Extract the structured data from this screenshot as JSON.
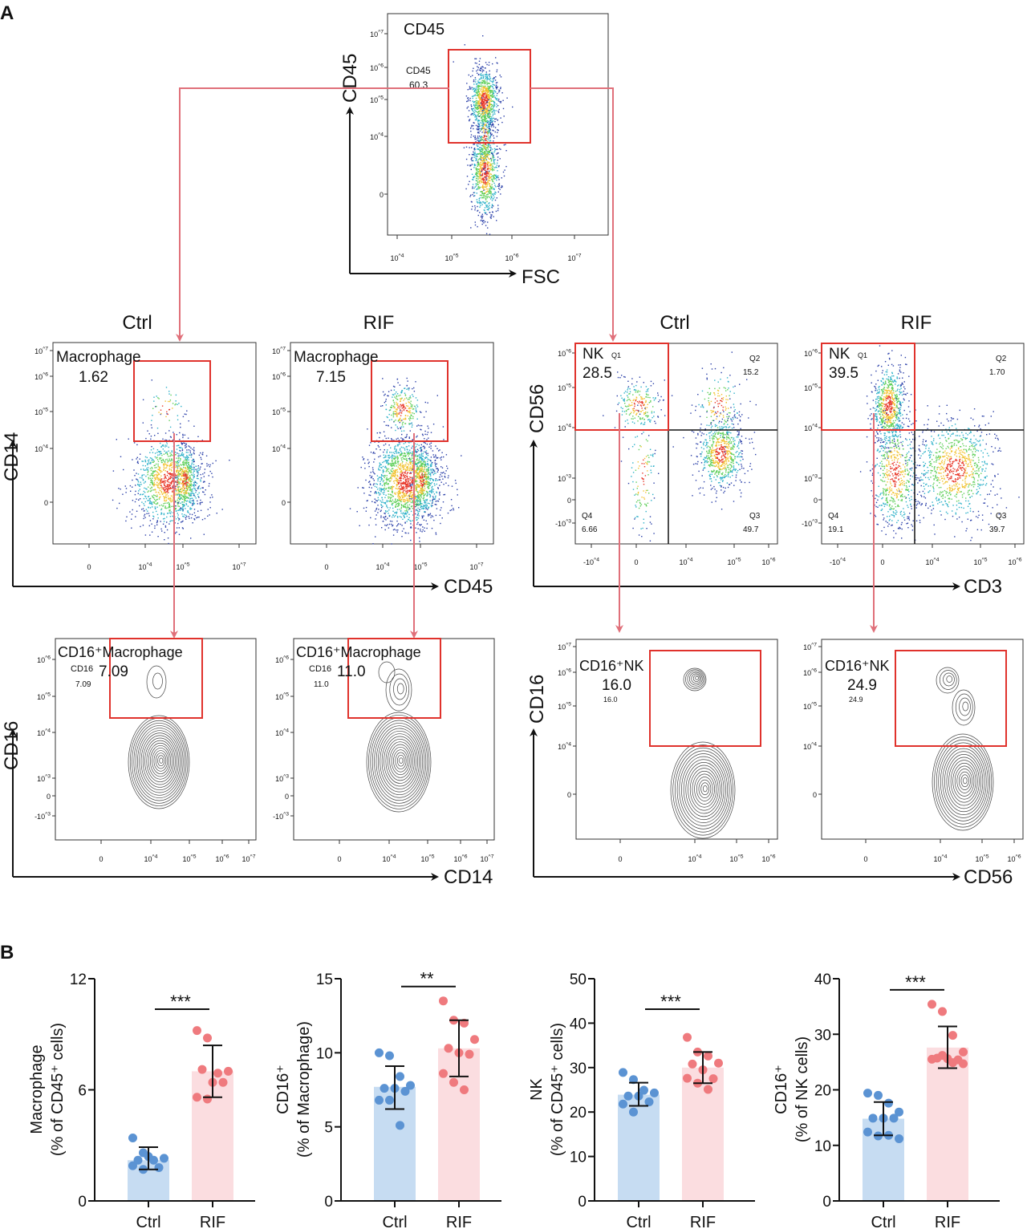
{
  "panel_labels": {
    "a": "A",
    "b": "B"
  },
  "panel_a": {
    "top_plot": {
      "title": "CD45",
      "gate_label": "CD45",
      "gate_value": "60.3",
      "x_axis": "FSC",
      "y_axis": "CD45",
      "x_ticks": [
        "10^4",
        "10^5",
        "10^6",
        "10^7"
      ],
      "y_ticks": [
        "10^7",
        "10^6",
        "10^5",
        "10^4",
        "0"
      ]
    },
    "group_headers": [
      "Ctrl",
      "RIF",
      "Ctrl",
      "RIF"
    ],
    "macrophage_row": {
      "x_axis": "CD45",
      "y_axis": "CD14",
      "x_ticks": [
        "0",
        "10^4",
        "10^5",
        "10^7"
      ],
      "y_ticks": [
        "10^7",
        "10^6",
        "10^5",
        "10^4",
        "0"
      ],
      "gate_label": "Macrophage",
      "plots": [
        {
          "group": "Ctrl",
          "value": "1.62"
        },
        {
          "group": "RIF",
          "value": "7.15"
        }
      ]
    },
    "nk_row": {
      "x_axis": "CD3",
      "y_axis": "CD56",
      "x_ticks": [
        "-10^4",
        "0",
        "10^4",
        "10^5",
        "10^6"
      ],
      "y_ticks": [
        "10^6",
        "10^5",
        "10^4",
        "10^3",
        "0",
        "-10^3"
      ],
      "gate_label": "NK",
      "plots": [
        {
          "group": "Ctrl",
          "value": "28.5",
          "quadrants": {
            "Q1": "Q1",
            "Q2": "Q2",
            "Q3": "Q3",
            "Q4": "Q4",
            "Q2_value": "15.2",
            "Q3_value": "49.7",
            "Q4_value": "6.66"
          }
        },
        {
          "group": "RIF",
          "value": "39.5",
          "quadrants": {
            "Q1": "Q1",
            "Q2": "Q2",
            "Q3": "Q3",
            "Q4": "Q4",
            "Q2_value": "1.70",
            "Q3_value": "39.7",
            "Q4_value": "19.1"
          }
        }
      ]
    },
    "cd16_macrophage_row": {
      "x_axis": "CD14",
      "y_axis": "CD16",
      "x_ticks": [
        "0",
        "10^4",
        "10^5",
        "10^6",
        "10^7"
      ],
      "y_ticks": [
        "10^6",
        "10^5",
        "10^4",
        "10^3",
        "0",
        "-10^3"
      ],
      "gate_label": "CD16⁺Macrophage",
      "gate_small": "CD16",
      "plots": [
        {
          "group": "Ctrl",
          "value": "7.09"
        },
        {
          "group": "RIF",
          "value": "11.0"
        }
      ]
    },
    "cd16_nk_row": {
      "x_axis": "CD56",
      "y_axis": "CD16",
      "x_ticks": [
        "0",
        "10^4",
        "10^5",
        "10^6"
      ],
      "y_ticks": [
        "10^7",
        "10^6",
        "10^5",
        "10^4",
        "0"
      ],
      "gate_label": "CD16⁺NK",
      "plots": [
        {
          "group": "Ctrl",
          "value": "16.0"
        },
        {
          "group": "RIF",
          "value": "24.9"
        }
      ]
    }
  },
  "colors": {
    "ctrl_bar": "#c6dcf2",
    "ctrl_dot": "#5b93d3",
    "rif_bar": "#fbdde0",
    "rif_dot": "#ef7a7e",
    "gate": "#e0322c",
    "arrow": "#e0707a"
  },
  "chart_data": [
    {
      "type": "bar",
      "categories": [
        "Ctrl",
        "RIF"
      ],
      "ylabel": [
        "Macrophage",
        "(% of CD45⁺ cells)"
      ],
      "ylim": [
        0,
        12
      ],
      "yticks": [
        0,
        6,
        12
      ],
      "means": [
        2.2,
        7.0
      ],
      "sd": [
        [
          1.7,
          2.9
        ],
        [
          5.6,
          8.4
        ]
      ],
      "significance": "***",
      "points": [
        [
          3.4,
          2.6,
          2.2,
          2.3,
          2.2,
          2.4,
          1.8,
          1.9,
          1.7
        ],
        [
          9.2,
          8.8,
          6.9,
          7.0,
          7.1,
          6.4,
          6.4,
          5.6,
          5.5
        ]
      ]
    },
    {
      "type": "bar",
      "categories": [
        "Ctrl",
        "RIF"
      ],
      "ylabel": [
        "CD16⁺",
        "(% of Macrophage)"
      ],
      "ylim": [
        0,
        15
      ],
      "yticks": [
        0,
        5,
        10,
        15
      ],
      "means": [
        7.7,
        10.3
      ],
      "sd": [
        [
          6.2,
          9.1
        ],
        [
          8.4,
          12.2
        ]
      ],
      "significance": "**",
      "points": [
        [
          10.0,
          9.8,
          8.4,
          7.8,
          7.6,
          7.6,
          7.4,
          6.8,
          6.8,
          5.1
        ],
        [
          13.5,
          12.2,
          12.0,
          10.9,
          10.3,
          10.0,
          9.9,
          8.6,
          8.0,
          7.5
        ]
      ]
    },
    {
      "type": "bar",
      "categories": [
        "Ctrl",
        "RIF"
      ],
      "ylabel": [
        "NK",
        "(% of CD45⁺ cells)"
      ],
      "ylim": [
        0,
        50
      ],
      "yticks": [
        0,
        10,
        20,
        30,
        40,
        50
      ],
      "means": [
        23.9,
        30.0
      ],
      "sd": [
        [
          21.4,
          26.6
        ],
        [
          26.5,
          33.5
        ]
      ],
      "significance": "***",
      "points": [
        [
          28.9,
          27.3,
          24.9,
          24.3,
          23.6,
          23.6,
          22.3,
          21.8,
          20.0
        ],
        [
          36.8,
          33.5,
          32.6,
          31.0,
          30.8,
          29.5,
          27.5,
          27.6,
          26.5,
          25.1
        ]
      ]
    },
    {
      "type": "bar",
      "categories": [
        "Ctrl",
        "RIF"
      ],
      "ylabel": [
        "CD16⁺",
        "(% of NK cells)"
      ],
      "ylim": [
        0,
        40
      ],
      "yticks": [
        0,
        10,
        20,
        30,
        40
      ],
      "means": [
        14.8,
        27.6
      ],
      "sd": [
        [
          11.8,
          17.8
        ],
        [
          23.9,
          31.4
        ]
      ],
      "significance": "***",
      "points": [
        [
          19.4,
          19.0,
          17.6,
          16.0,
          14.9,
          14.9,
          14.9,
          12.4,
          11.7,
          11.8,
          11.2
        ],
        [
          35.4,
          34.1,
          29.8,
          26.8,
          25.7,
          25.6,
          25.4,
          25.5,
          26.2,
          24.9,
          24.7
        ]
      ]
    }
  ]
}
